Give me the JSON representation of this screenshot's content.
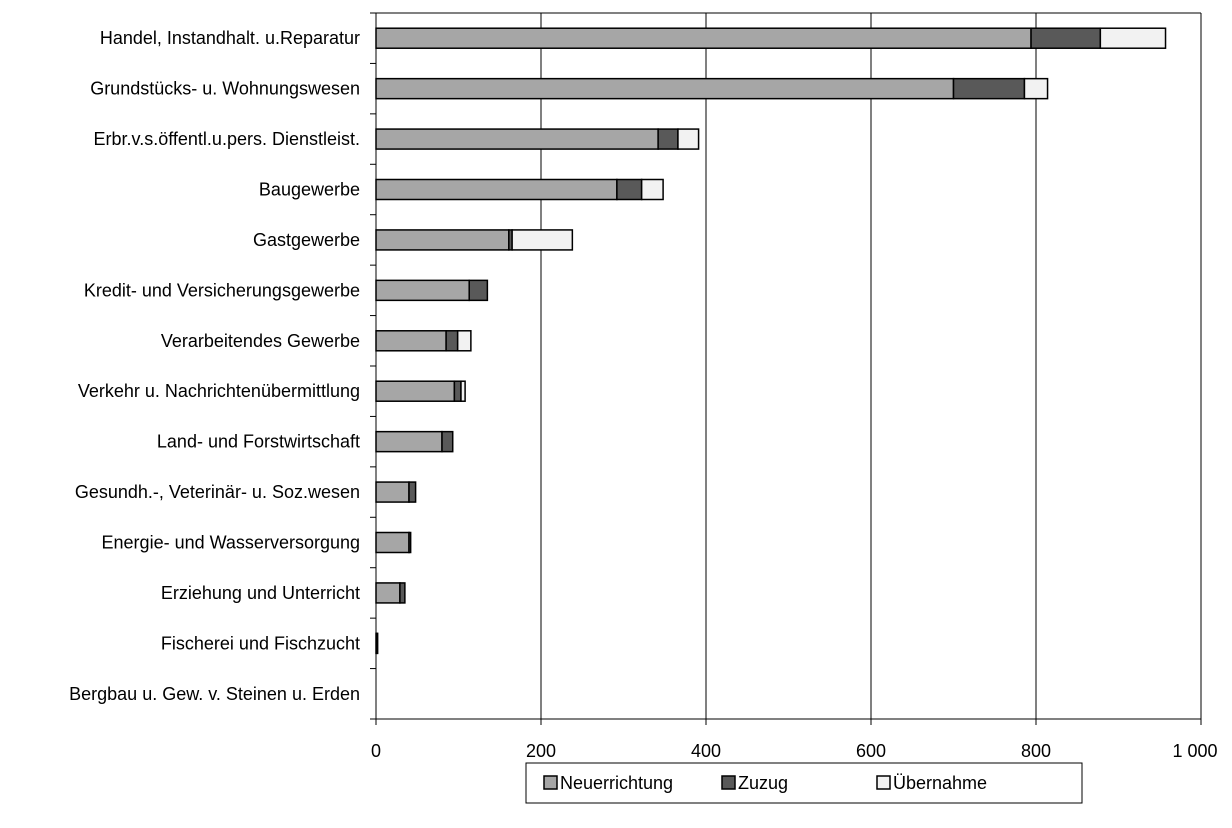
{
  "chart_data": {
    "type": "bar",
    "orientation": "horizontal",
    "stacked": true,
    "categories": [
      "Handel, Instandhalt. u.Reparatur",
      "Grundstücks- u. Wohnungswesen",
      "Erbr.v.s.öffentl.u.pers. Dienstleist.",
      "Baugewerbe",
      "Gastgewerbe",
      "Kredit- und Versicherungsgewerbe",
      "Verarbeitendes Gewerbe",
      "Verkehr u. Nachrichtenübermittlung",
      "Land- und Forstwirtschaft",
      "Gesundh.-, Veterinär- u. Soz.wesen",
      "Energie- und Wasserversorgung",
      "Erziehung und Unterricht",
      "Fischerei und Fischzucht",
      "Bergbau u. Gew. v. Steinen u. Erden"
    ],
    "series": [
      {
        "name": "Neuerrichtung",
        "color": "#a6a6a6",
        "values": [
          794,
          700,
          342,
          292,
          161,
          113,
          85,
          95,
          80,
          40,
          40,
          29,
          1,
          0
        ]
      },
      {
        "name": "Zuzug",
        "color": "#595959",
        "values": [
          84,
          86,
          24,
          30,
          4,
          22,
          14,
          8,
          13,
          8,
          2,
          6,
          1,
          0
        ]
      },
      {
        "name": "Übernahme",
        "color": "#f2f2f2",
        "values": [
          79,
          28,
          25,
          26,
          73,
          0,
          16,
          5,
          0,
          0,
          0,
          0,
          0,
          0
        ]
      }
    ],
    "xlim": [
      0,
      1000
    ],
    "xticks": [
      0,
      200,
      400,
      600,
      800,
      1000
    ],
    "xtick_labels": [
      "0",
      "200",
      "400",
      "600",
      "800",
      "1 000"
    ],
    "grid": "vertical",
    "legend_position": "bottom"
  }
}
